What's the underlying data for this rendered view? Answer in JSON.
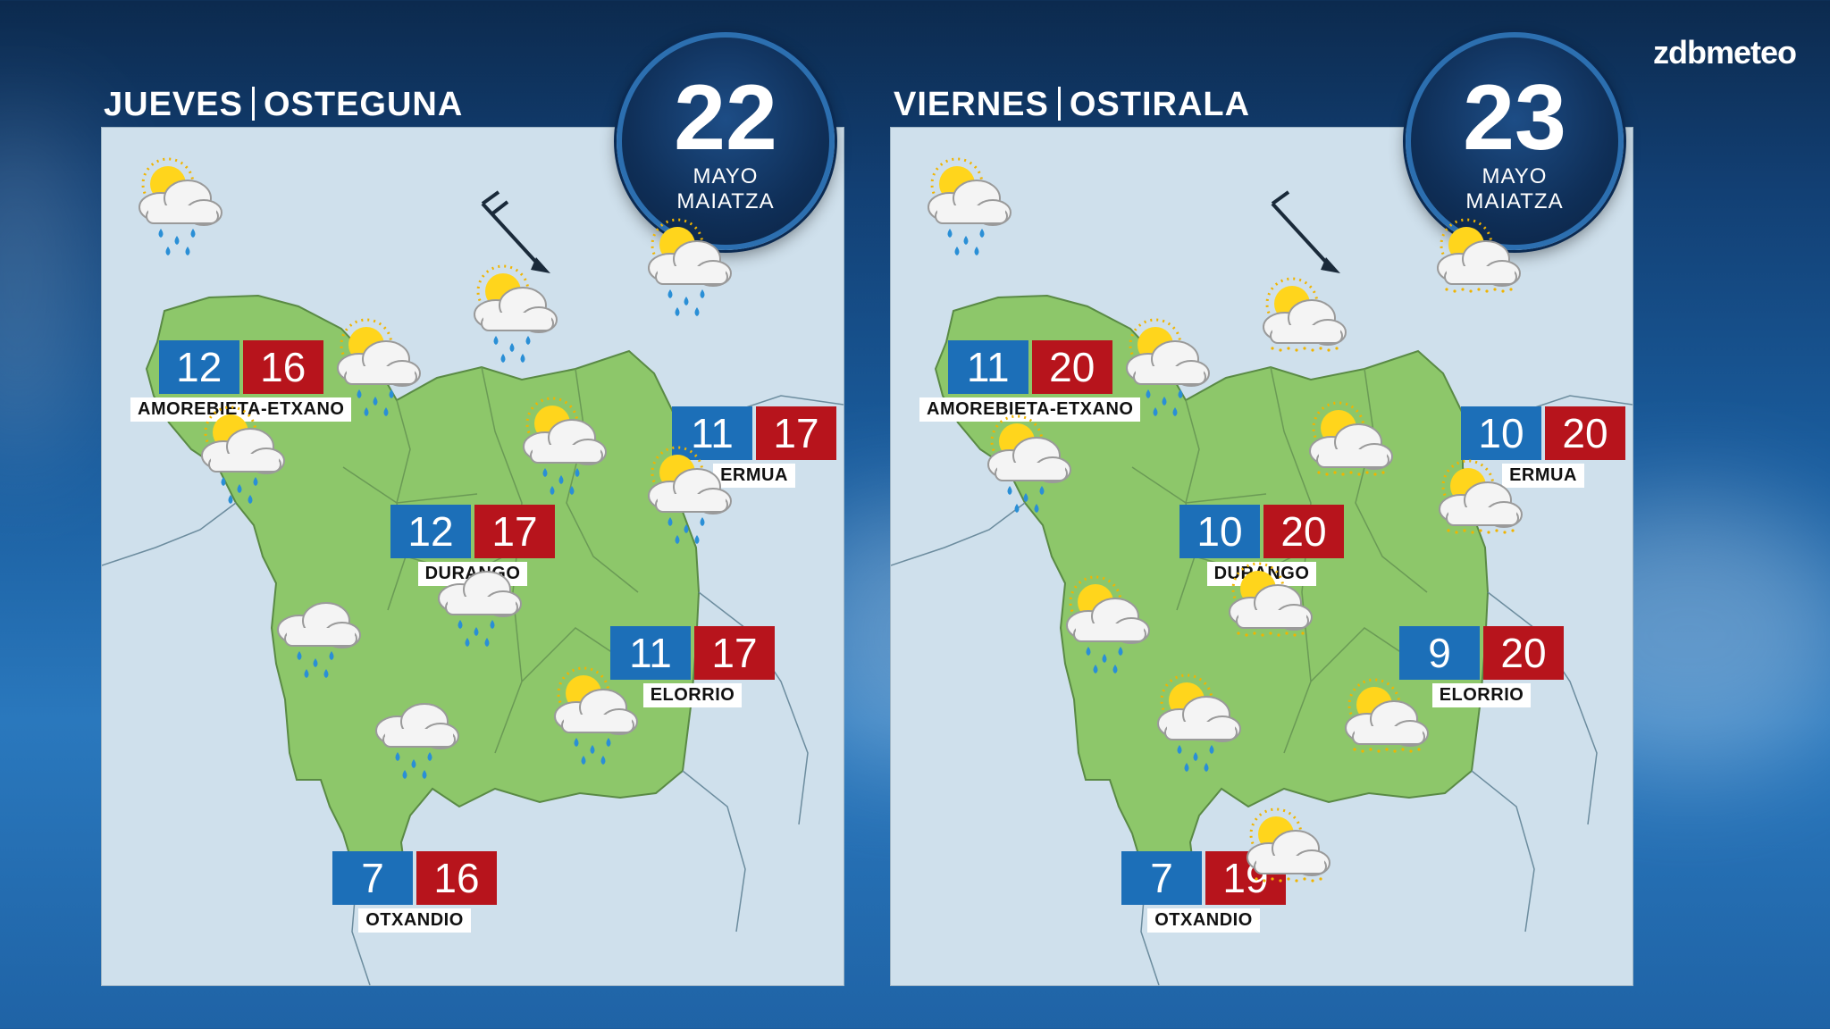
{
  "brand": "zdbmeteo",
  "days": [
    {
      "title_a": "JUEVES",
      "title_b": "OSTEGUNA",
      "date_num": "22",
      "month_a": "MAYO",
      "month_b": "MAIATZA",
      "cities": [
        {
          "name": "AMOREBIETA-ETXANO",
          "min": "12",
          "max": "16"
        },
        {
          "name": "ERMUA",
          "min": "11",
          "max": "17"
        },
        {
          "name": "DURANGO",
          "min": "12",
          "max": "17"
        },
        {
          "name": "ELORRIO",
          "min": "11",
          "max": "17"
        },
        {
          "name": "OTXANDIO",
          "min": "7",
          "max": "16"
        }
      ],
      "icons": [
        "sun-cloud-rain-icon",
        "sun-cloud-rain-icon",
        "sun-cloud-rain-icon",
        "sun-cloud-rain-icon",
        "sun-cloud-rain-icon",
        "sun-cloud-rain-icon",
        "sun-cloud-rain-icon",
        "cloud-rain-icon",
        "cloud-rain-icon",
        "cloud-rain-icon",
        "sun-cloud-rain-icon"
      ],
      "wind": "wind-arrow-northwest-icon"
    },
    {
      "title_a": "VIERNES",
      "title_b": "OSTIRALA",
      "date_num": "23",
      "month_a": "MAYO",
      "month_b": "MAIATZA",
      "cities": [
        {
          "name": "AMOREBIETA-ETXANO",
          "min": "11",
          "max": "20"
        },
        {
          "name": "ERMUA",
          "min": "10",
          "max": "20"
        },
        {
          "name": "DURANGO",
          "min": "10",
          "max": "20"
        },
        {
          "name": "ELORRIO",
          "min": "9",
          "max": "20"
        },
        {
          "name": "OTXANDIO",
          "min": "7",
          "max": "19"
        }
      ],
      "icons": [
        "sun-cloud-rain-icon",
        "sun-cloud-rain-icon",
        "sun-cloud-icon",
        "sun-cloud-rain-icon",
        "sun-cloud-icon",
        "sun-cloud-icon",
        "sun-cloud-icon",
        "sun-cloud-rain-icon",
        "sun-cloud-icon",
        "sun-cloud-rain-icon",
        "sun-cloud-icon",
        "sun-cloud-icon"
      ],
      "wind": "wind-arrow-northwest-icon"
    }
  ],
  "colors": {
    "min_bg": "#1c6fb8",
    "max_bg": "#b7141c",
    "land": "#8dc76a",
    "sea": "#cfe0ec"
  }
}
